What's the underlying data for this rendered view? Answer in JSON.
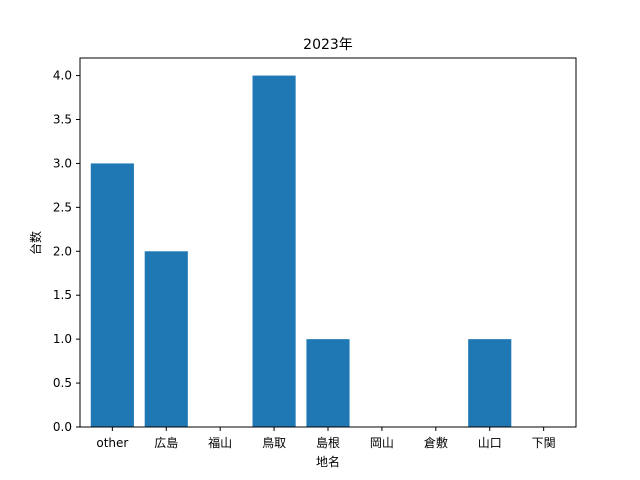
{
  "chart_data": {
    "type": "bar",
    "title": "2023年",
    "xlabel": "地名",
    "ylabel": "台数",
    "categories": [
      "other",
      "広島",
      "福山",
      "鳥取",
      "島根",
      "岡山",
      "倉敷",
      "山口",
      "下関"
    ],
    "values": [
      3,
      2,
      0,
      4,
      1,
      0,
      0,
      1,
      0
    ],
    "ylim": [
      0,
      4.2
    ],
    "yticks": [
      "0.0",
      "0.5",
      "1.0",
      "1.5",
      "2.0",
      "2.5",
      "3.0",
      "3.5",
      "4.0"
    ],
    "bar_color": "#1f77b4",
    "grid": false,
    "legend": "none"
  }
}
